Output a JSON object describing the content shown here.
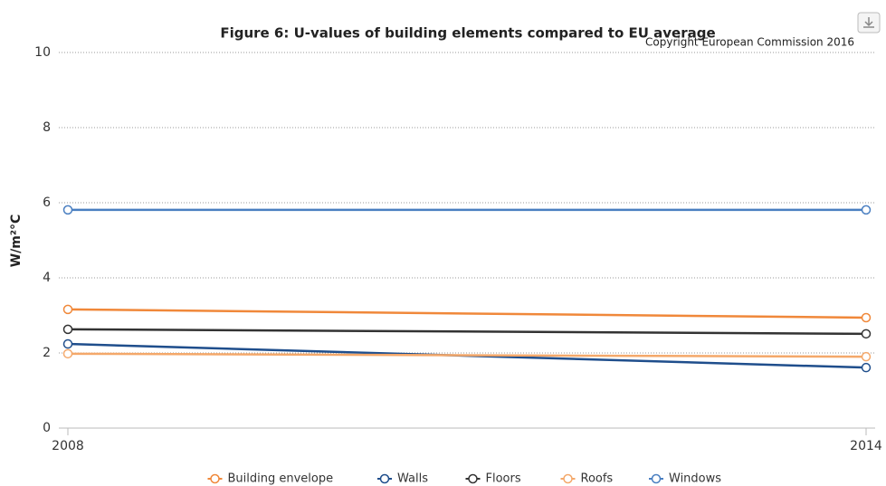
{
  "chart_data": {
    "type": "line",
    "title": "Figure 6: U-values of building elements compared to EU average",
    "credit": "Copyright European Commission 2016",
    "ylabel": "W/m²°C",
    "x": [
      2008,
      2014
    ],
    "xlim": [
      2008,
      2014
    ],
    "xticks": [
      2008,
      2014
    ],
    "ylim": [
      0,
      10
    ],
    "yticks": [
      0,
      2,
      4,
      6,
      8,
      10
    ],
    "grid": true,
    "legend": "bottom",
    "series": [
      {
        "name": "Building envelope",
        "color": "#f0883a",
        "values": [
          3.16,
          2.94
        ]
      },
      {
        "name": "Walls",
        "color": "#1f4e8c",
        "values": [
          2.24,
          1.61
        ]
      },
      {
        "name": "Floors",
        "color": "#333333",
        "values": [
          2.63,
          2.51
        ]
      },
      {
        "name": "Roofs",
        "color": "#f4a86a",
        "values": [
          1.98,
          1.9
        ]
      },
      {
        "name": "Windows",
        "color": "#4a7fc1",
        "values": [
          5.81,
          5.81
        ]
      }
    ]
  }
}
